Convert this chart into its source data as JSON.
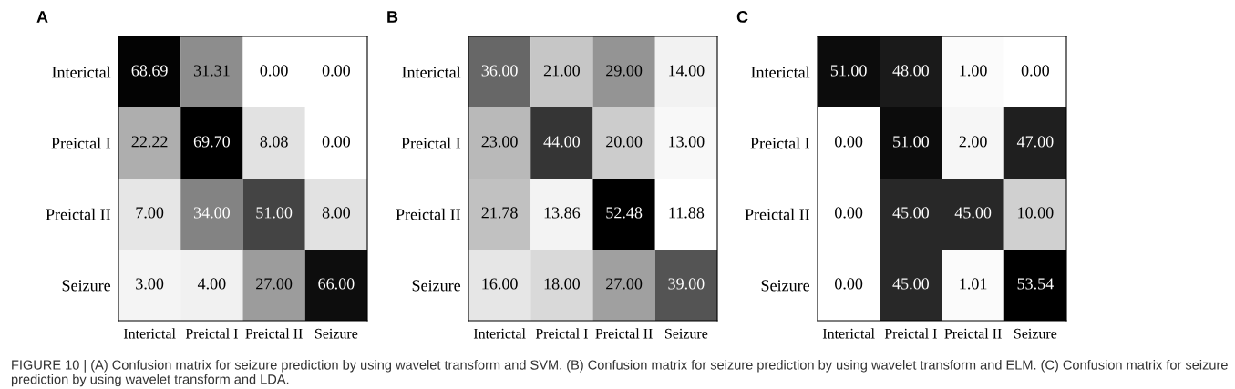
{
  "chart_data": [
    {
      "type": "heatmap",
      "title": "A",
      "categories": [
        "Interictal",
        "Preictal I",
        "Preictal II",
        "Seizure"
      ],
      "y_categories": [
        "Interictal",
        "Preictal I",
        "Preictal II",
        "Seizure"
      ],
      "cells": [
        [
          68.69,
          31.31,
          0.0,
          0.0
        ],
        [
          22.22,
          69.7,
          8.08,
          0.0
        ],
        [
          7.0,
          34.0,
          51.0,
          8.0
        ],
        [
          3.0,
          4.0,
          27.0,
          66.0
        ]
      ],
      "cell_labels": [
        [
          "68.69",
          "31.31",
          "0.00",
          "0.00"
        ],
        [
          "22.22",
          "69.70",
          "8.08",
          "0.00"
        ],
        [
          "7.00",
          "34.00",
          "51.00",
          "8.00"
        ],
        [
          "3.00",
          "4.00",
          "27.00",
          "66.00"
        ]
      ],
      "annotations": [
        "FIGURE 10 | (A) Confusion matrix for seizure prediction by using wavelet transform and SVM. (B) Confusion matrix for seizure prediction by using wavelet transform and ELM. (C) Confusion matrix for seizure prediction by using wavelet transform and LDA."
      ]
    },
    {
      "type": "heatmap",
      "title": "B",
      "categories": [
        "Interictal",
        "Preictal I",
        "Preictal II",
        "Seizure"
      ],
      "y_categories": [
        "Interictal",
        "Preictal I",
        "Preictal II",
        "Seizure"
      ],
      "cells": [
        [
          36.0,
          21.0,
          29.0,
          14.0
        ],
        [
          23.0,
          44.0,
          20.0,
          13.0
        ],
        [
          21.78,
          13.86,
          52.48,
          11.88
        ],
        [
          16.0,
          18.0,
          27.0,
          39.0
        ]
      ],
      "cell_labels": [
        [
          "36.00",
          "21.00",
          "29.00",
          "14.00"
        ],
        [
          "23.00",
          "44.00",
          "20.00",
          "13.00"
        ],
        [
          "21.78",
          "13.86",
          "52.48",
          "11.88"
        ],
        [
          "16.00",
          "18.00",
          "27.00",
          "39.00"
        ]
      ]
    },
    {
      "type": "heatmap",
      "title": "C",
      "categories": [
        "Interictal",
        "Preictal I",
        "Preictal II",
        "Seizure"
      ],
      "y_categories": [
        "Interictal",
        "Preictal I",
        "Preictal II",
        "Seizure"
      ],
      "cells": [
        [
          51.0,
          48.0,
          1.0,
          0.0
        ],
        [
          0.0,
          51.0,
          2.0,
          47.0
        ],
        [
          0.0,
          45.0,
          45.0,
          10.0
        ],
        [
          0.0,
          45.0,
          1.01,
          53.54
        ]
      ],
      "cell_labels": [
        [
          "51.00",
          "48.00",
          "1.00",
          "0.00"
        ],
        [
          "0.00",
          "51.00",
          "2.00",
          "47.00"
        ],
        [
          "0.00",
          "45.00",
          "45.00",
          "10.00"
        ],
        [
          "0.00",
          "45.00",
          "1.01",
          "53.54"
        ]
      ]
    }
  ]
}
